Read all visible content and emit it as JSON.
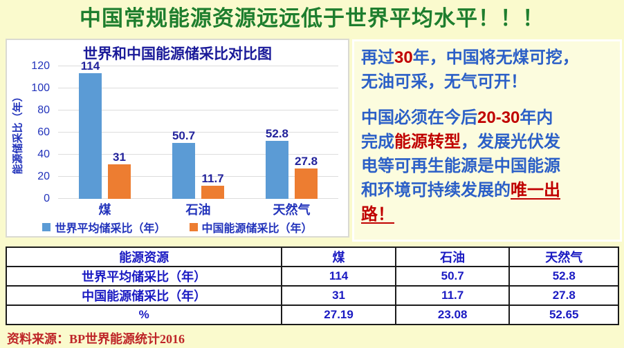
{
  "slide": {
    "title": "中国常规能源资源远远低于世界平均水平！！！",
    "source": "资料来源：BP世界能源统计2016"
  },
  "chart_data": {
    "type": "bar",
    "title": "世界和中国能源储采比对比图",
    "xlabel": "",
    "ylabel": "能源储采比（年）",
    "categories": [
      "煤",
      "石油",
      "天然气"
    ],
    "series": [
      {
        "name": "世界平均储采比（年）",
        "color": "#5B9BD5",
        "values": [
          114,
          50.7,
          52.8
        ]
      },
      {
        "name": "中国能源储采比（年）",
        "color": "#ED7D31",
        "values": [
          31,
          11.7,
          27.8
        ]
      }
    ],
    "ylim": [
      0,
      120
    ],
    "yticks": [
      0,
      20,
      40,
      60,
      80,
      100,
      120
    ],
    "grid": true,
    "legend_position": "bottom"
  },
  "right_panel": {
    "para1": [
      {
        "t": "再过",
        "s": "blue"
      },
      {
        "t": "30",
        "s": "num-red"
      },
      {
        "t": "年，中国将无煤可挖，\n无油可采，无气可开！",
        "s": "blue"
      }
    ],
    "para2": [
      {
        "t": "中国必须在今后",
        "s": "blue"
      },
      {
        "t": "20-30",
        "s": "num-red"
      },
      {
        "t": "年内\n完成",
        "s": "blue"
      },
      {
        "t": "能源转型",
        "s": "red"
      },
      {
        "t": "，发展光伏发\n电等可再生能源是中国能源\n和环境可持续发展的",
        "s": "blue"
      },
      {
        "t": "唯一出\n路！",
        "s": "red-underline"
      }
    ]
  },
  "table": {
    "header": [
      "能源资源",
      "煤",
      "石油",
      "天然气"
    ],
    "rows": [
      [
        "世界平均储采比（年）",
        "114",
        "50.7",
        "52.8"
      ],
      [
        "中国能源储采比（年）",
        "31",
        "11.7",
        "27.8"
      ],
      [
        "%",
        "27.19",
        "23.08",
        "52.65"
      ]
    ]
  },
  "colors": {
    "slide_background": "#FAFACD",
    "title_green": "#1E7E2E",
    "chart_navy": "#1A1A99",
    "axis_blue": "#2233BB",
    "table_blue": "#1A1AC2",
    "text_blue": "#2B5FC7",
    "accent_red": "#C00000",
    "source_red": "#BE2528",
    "bar_world": "#5B9BD5",
    "bar_china": "#ED7D31"
  }
}
